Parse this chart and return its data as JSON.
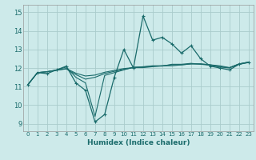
{
  "xlabel": "Humidex (Indice chaleur)",
  "ylabel": "",
  "bg_color": "#cdeaea",
  "grid_color": "#aacccc",
  "line_color": "#1a6b6b",
  "xlim": [
    -0.5,
    23.5
  ],
  "ylim": [
    8.6,
    15.4
  ],
  "yticks": [
    9,
    10,
    11,
    12,
    13,
    14,
    15
  ],
  "xticks": [
    0,
    1,
    2,
    3,
    4,
    5,
    6,
    7,
    8,
    9,
    10,
    11,
    12,
    13,
    14,
    15,
    16,
    17,
    18,
    19,
    20,
    21,
    22,
    23
  ],
  "series": [
    {
      "x": [
        0,
        1,
        2,
        3,
        4,
        5,
        6,
        7,
        8,
        9,
        10,
        11,
        12,
        13,
        14,
        15,
        16,
        17,
        18,
        19,
        20,
        21,
        22,
        23
      ],
      "y": [
        11.1,
        11.75,
        11.7,
        11.9,
        12.1,
        11.2,
        10.8,
        9.1,
        9.5,
        11.5,
        13.0,
        12.0,
        14.8,
        13.5,
        13.65,
        13.3,
        12.8,
        13.2,
        12.5,
        12.1,
        12.0,
        11.9,
        12.2,
        12.3
      ],
      "marker": true
    },
    {
      "x": [
        0,
        1,
        2,
        3,
        4,
        5,
        6,
        7,
        8,
        9,
        10,
        11,
        12,
        13,
        14,
        15,
        16,
        17,
        18,
        19,
        20,
        21,
        22,
        23
      ],
      "y": [
        11.1,
        11.75,
        11.8,
        11.9,
        12.05,
        11.5,
        11.2,
        9.4,
        11.6,
        11.75,
        11.9,
        12.05,
        12.05,
        12.1,
        12.1,
        12.2,
        12.2,
        12.25,
        12.2,
        12.15,
        12.05,
        12.0,
        12.2,
        12.3
      ],
      "marker": false
    },
    {
      "x": [
        0,
        1,
        2,
        3,
        4,
        5,
        6,
        7,
        8,
        9,
        10,
        11,
        12,
        13,
        14,
        15,
        16,
        17,
        18,
        19,
        20,
        21,
        22,
        23
      ],
      "y": [
        11.1,
        11.75,
        11.8,
        11.88,
        11.95,
        11.65,
        11.4,
        11.5,
        11.7,
        11.82,
        11.92,
        12.02,
        12.02,
        12.07,
        12.12,
        12.12,
        12.17,
        12.22,
        12.22,
        12.17,
        12.07,
        12.02,
        12.22,
        12.32
      ],
      "marker": false
    },
    {
      "x": [
        0,
        1,
        2,
        3,
        4,
        5,
        6,
        7,
        8,
        9,
        10,
        11,
        12,
        13,
        14,
        15,
        16,
        17,
        18,
        19,
        20,
        21,
        22,
        23
      ],
      "y": [
        11.1,
        11.75,
        11.8,
        11.88,
        11.97,
        11.72,
        11.57,
        11.62,
        11.77,
        11.87,
        11.97,
        12.02,
        12.07,
        12.12,
        12.12,
        12.17,
        12.17,
        12.22,
        12.22,
        12.17,
        12.12,
        12.02,
        12.22,
        12.32
      ],
      "marker": false
    }
  ]
}
